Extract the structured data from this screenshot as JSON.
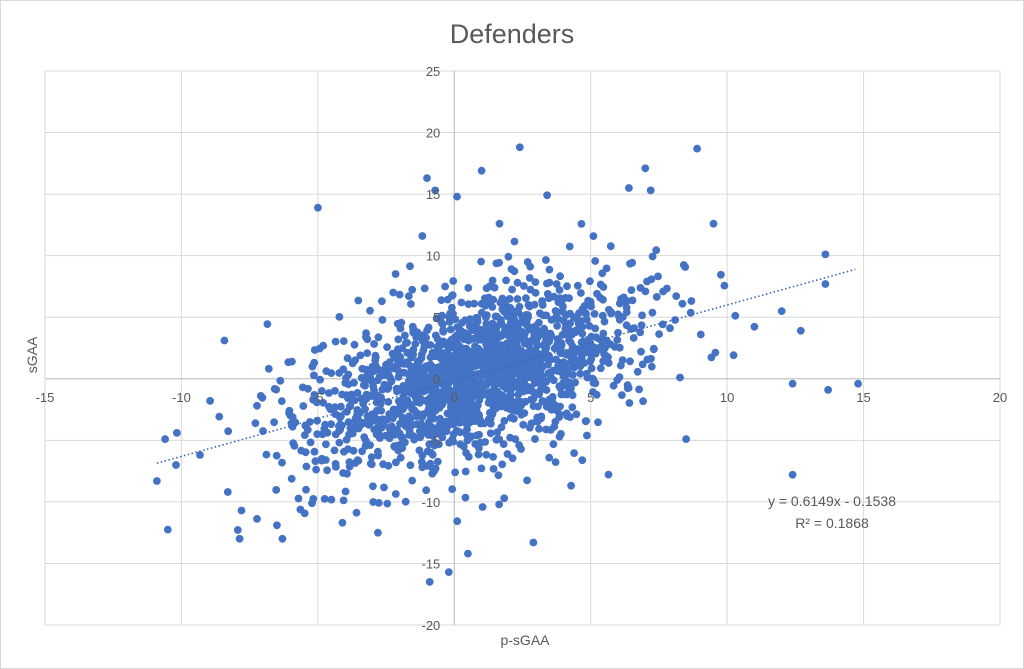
{
  "chart_data": {
    "type": "scatter",
    "title": "Defenders",
    "xlabel": "p-sGAA",
    "ylabel": "sGAA",
    "xlim": [
      -15,
      20
    ],
    "ylim": [
      -20,
      25
    ],
    "x_ticks": [
      -15,
      -10,
      -5,
      0,
      5,
      10,
      15,
      20
    ],
    "y_ticks": [
      -20,
      -15,
      -10,
      -5,
      0,
      5,
      10,
      15,
      20,
      25
    ],
    "x_tick_labels": [
      "-15",
      "-10",
      "-5",
      "0",
      "5",
      "10",
      "15",
      "20"
    ],
    "y_tick_labels": [
      "-20",
      "-15",
      "-10",
      "-5",
      "0",
      "5",
      "10",
      "15",
      "20",
      "25"
    ],
    "grid": true,
    "marker_color": "#4472C4",
    "trendline": {
      "type": "linear",
      "slope": 0.6149,
      "intercept": -0.1538,
      "x_range": [
        -10.9,
        14.7
      ],
      "equation_label": "y = 0.6149x - 0.1538",
      "r2_label": "R² = 0.1868"
    },
    "notable_points": [
      [
        2.4,
        18.8
      ],
      [
        8.9,
        18.7
      ],
      [
        7.0,
        17.1
      ],
      [
        1.0,
        16.9
      ],
      [
        -1.0,
        16.3
      ],
      [
        -0.7,
        15.3
      ],
      [
        6.4,
        15.5
      ],
      [
        7.2,
        15.3
      ],
      [
        3.4,
        14.9
      ],
      [
        -5.0,
        13.9
      ],
      [
        0.1,
        14.8
      ],
      [
        9.5,
        12.6
      ],
      [
        13.6,
        10.1
      ],
      [
        12.0,
        5.5
      ],
      [
        12.7,
        3.9
      ],
      [
        13.6,
        7.7
      ],
      [
        14.8,
        -0.4
      ],
      [
        13.7,
        -0.9
      ],
      [
        12.4,
        -0.4
      ],
      [
        12.4,
        -7.8
      ],
      [
        -10.9,
        -8.3
      ],
      [
        -10.6,
        -4.9
      ],
      [
        -10.2,
        -7.0
      ],
      [
        -8.3,
        -9.2
      ],
      [
        -7.8,
        -10.7
      ],
      [
        -6.5,
        -11.9
      ],
      [
        2.9,
        -13.3
      ],
      [
        0.5,
        -14.2
      ],
      [
        -0.2,
        -15.7
      ],
      [
        -0.9,
        -16.5
      ],
      [
        -2.8,
        -12.5
      ],
      [
        -4.1,
        -11.7
      ]
    ],
    "cloud": {
      "n": 1750,
      "x_mean": 0.6,
      "x_sd": 3.9,
      "y_sd": 4.2
    }
  }
}
